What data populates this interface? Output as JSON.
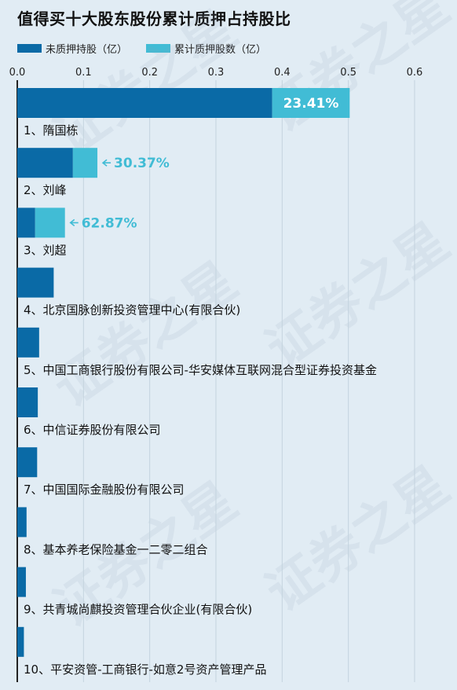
{
  "title": "值得买十大股东股份累计质押占持股比",
  "watermark": "证券之星",
  "colors": {
    "unpledged": "#0a6aa6",
    "pledged": "#41bcd5",
    "grid": "#c4d3de",
    "axis": "#222222",
    "background": "#e1ecf4"
  },
  "chart_data": {
    "type": "bar",
    "orientation": "horizontal",
    "stacked": true,
    "xlim": [
      0,
      0.6
    ],
    "xticks": [
      "0.0",
      "0.1",
      "0.2",
      "0.3",
      "0.4",
      "0.5",
      "0.6"
    ],
    "grid": true,
    "legend_position": "top-left",
    "series": [
      {
        "name": "未质押持股（亿）",
        "color": "#0a6aa6",
        "values": [
          0.385,
          0.084,
          0.027,
          0.055,
          0.033,
          0.031,
          0.03,
          0.014,
          0.013,
          0.01
        ]
      },
      {
        "name": "累计质押股数（亿）",
        "color": "#41bcd5",
        "values": [
          0.117,
          0.037,
          0.045,
          0,
          0,
          0,
          0,
          0,
          0,
          0
        ]
      }
    ],
    "categories": [
      "1、隋国栋",
      "2、刘峰",
      "3、刘超",
      "4、北京国脉创新投资管理中心(有限合伙)",
      "5、中国工商银行股份有限公司-华安媒体互联网混合型证券投资基金",
      "6、中信证券股份有限公司",
      "7、中国国际金融股份有限公司",
      "8、基本养老保险基金一二零二组合",
      "9、共青城尚麒投资管理合伙企业(有限合伙)",
      "10、平安资管-工商银行-如意2号资产管理产品"
    ],
    "annotations": [
      {
        "index": 0,
        "text": "23.41%",
        "style": "inside"
      },
      {
        "index": 1,
        "text": "30.37%",
        "style": "arrow"
      },
      {
        "index": 2,
        "text": "62.87%",
        "style": "arrow"
      }
    ]
  }
}
